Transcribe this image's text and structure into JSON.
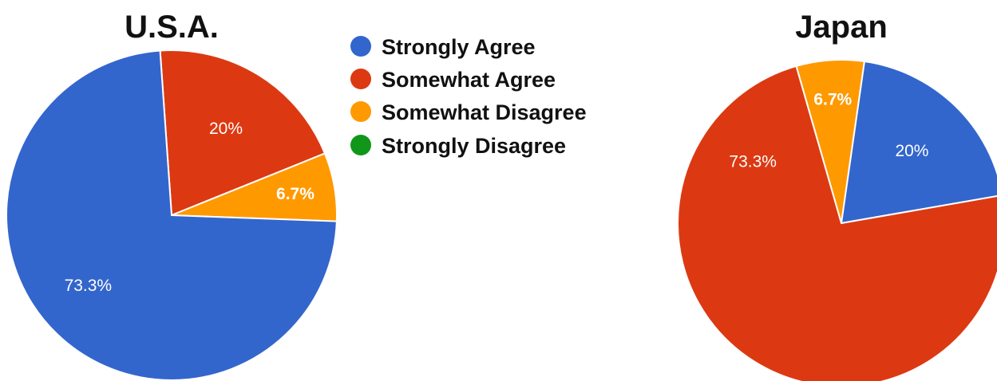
{
  "chart_data": [
    {
      "type": "pie",
      "title": "U.S.A.",
      "start_angle_deg": -4,
      "slices": [
        {
          "category": "Somewhat Agree",
          "value": 20,
          "label": "20%",
          "bold": false
        },
        {
          "category": "Somewhat Disagree",
          "value": 6.7,
          "label": "6.7%",
          "bold": true
        },
        {
          "category": "Strongly Agree",
          "value": 73.3,
          "label": "73.3%",
          "bold": false
        }
      ]
    },
    {
      "type": "pie",
      "title": "Japan",
      "start_angle_deg": -16,
      "slices": [
        {
          "category": "Somewhat Disagree",
          "value": 6.7,
          "label": "6.7%",
          "bold": true
        },
        {
          "category": "Strongly Agree",
          "value": 20,
          "label": "20%",
          "bold": false
        },
        {
          "category": "Somewhat Agree",
          "value": 73.3,
          "label": "73.3%",
          "bold": false
        }
      ]
    }
  ],
  "legend": {
    "position": "top-center",
    "items": [
      {
        "label": "Strongly Agree",
        "color": "#3366cc"
      },
      {
        "label": "Somewhat Agree",
        "color": "#dc3912"
      },
      {
        "label": "Somewhat Disagree",
        "color": "#ff9900"
      },
      {
        "label": "Strongly Disagree",
        "color": "#109618"
      }
    ]
  }
}
